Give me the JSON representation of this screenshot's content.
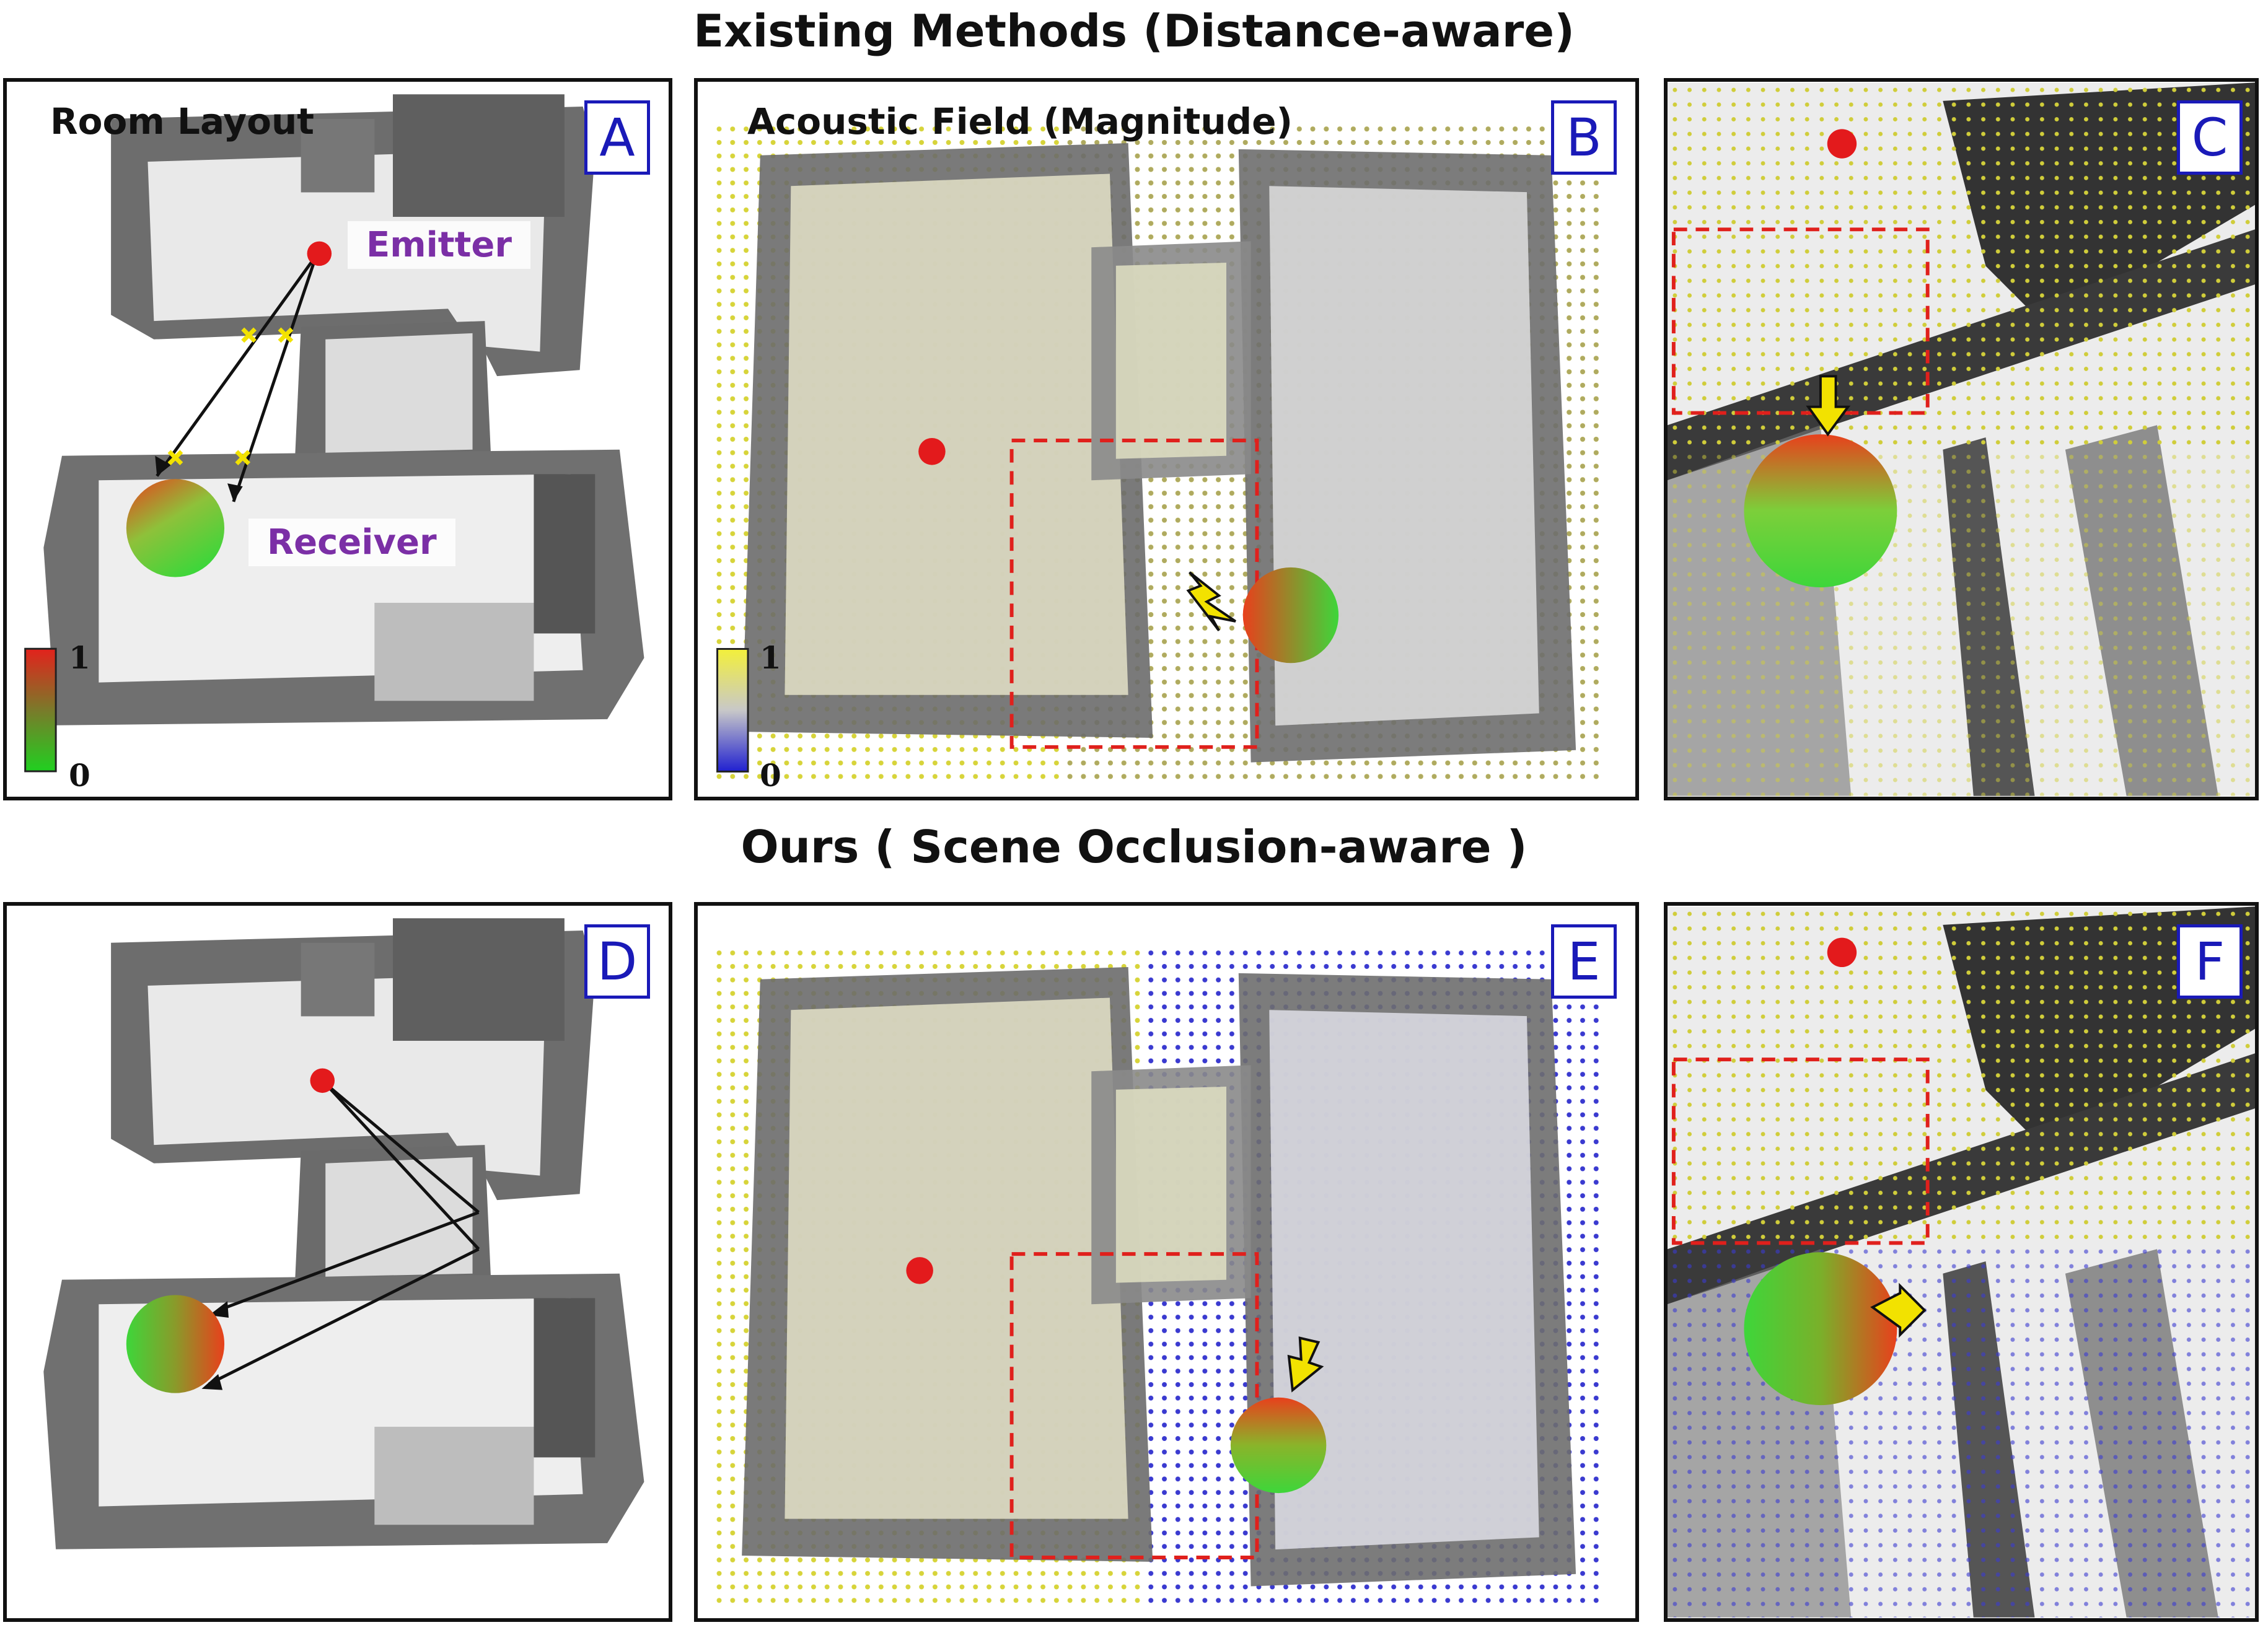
{
  "titles": {
    "top": "Existing Methods (Distance-aware)",
    "bottom": "Ours ( Scene Occlusion-aware )"
  },
  "panels": {
    "A": {
      "letter": "A",
      "label": "Room Layout",
      "emitter": "Emitter",
      "receiver": "Receiver",
      "cbar_max": "1",
      "cbar_min": "0"
    },
    "B": {
      "letter": "B",
      "label": "Acoustic Field (Magnitude)",
      "cbar_max": "1",
      "cbar_min": "0"
    },
    "C": {
      "letter": "C"
    },
    "D": {
      "letter": "D"
    },
    "E": {
      "letter": "E"
    },
    "F": {
      "letter": "F"
    }
  },
  "colors": {
    "emitter": "#e31a1c",
    "receiver_near": "#e8401c",
    "receiver_far": "#3ed63a",
    "field_high": "#dede3a",
    "field_low": "#2b2bd6",
    "highlight_box": "#e0201c",
    "arrow": "#f2e200",
    "panel_letter": "#1a1ab8",
    "label_purple": "#7b2fa6"
  }
}
